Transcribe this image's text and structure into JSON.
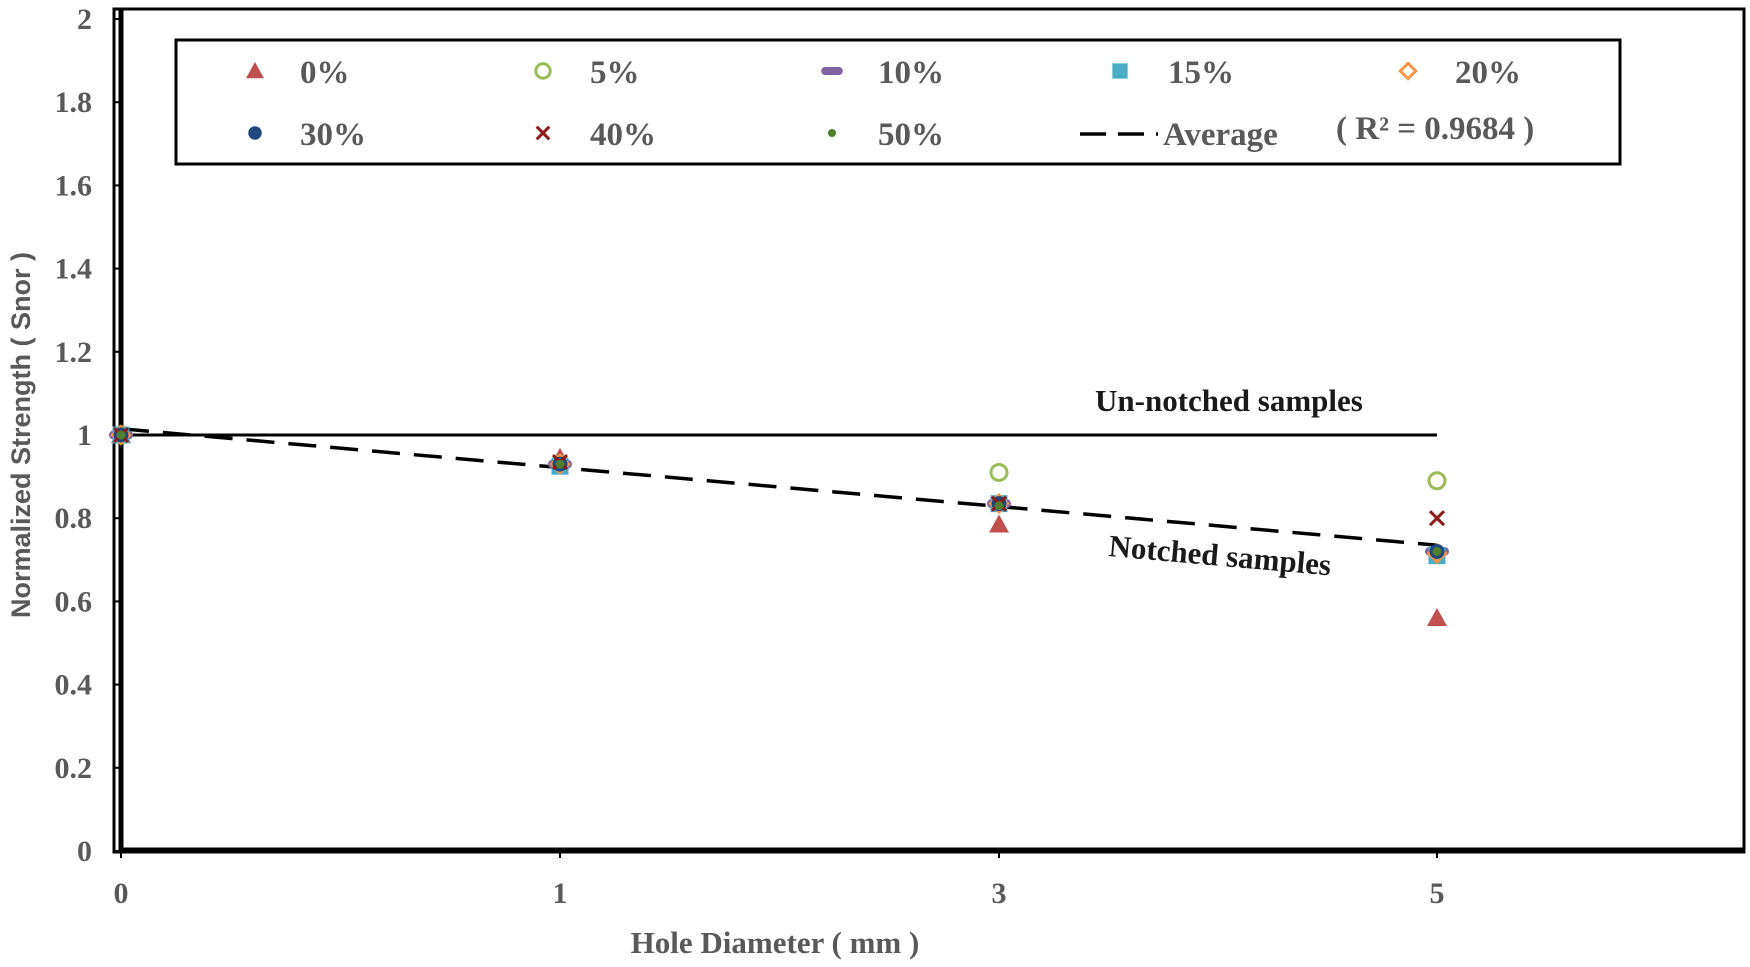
{
  "chart_data": {
    "type": "scatter",
    "xlabel": "Hole Diameter  ( mm )",
    "ylabel": "Normalized Strength ( Snor )",
    "ylim": [
      0,
      2
    ],
    "yticks": [
      "0",
      "0.2",
      "0.4",
      "0.6",
      "0.8",
      "1",
      "1.2",
      "1.4",
      "1.6",
      "1.8",
      "2"
    ],
    "categories": [
      "0",
      "1",
      "3",
      "5"
    ],
    "series": [
      {
        "name": "0%",
        "marker": "triangle",
        "color": "#c0504d",
        "values": [
          1.0,
          0.945,
          0.785,
          0.56
        ]
      },
      {
        "name": "5%",
        "marker": "circle-open",
        "color": "#9bbb59",
        "values": [
          1.0,
          0.93,
          0.91,
          0.89
        ]
      },
      {
        "name": "10%",
        "marker": "dash",
        "color": "#8064a2",
        "values": [
          1.0,
          0.93,
          0.835,
          0.72
        ]
      },
      {
        "name": "15%",
        "marker": "square",
        "color": "#4bacc6",
        "values": [
          1.0,
          0.925,
          0.835,
          0.71
        ]
      },
      {
        "name": "20%",
        "marker": "diamond-open",
        "color": "#f79646",
        "values": [
          1.0,
          0.93,
          0.835,
          0.715
        ]
      },
      {
        "name": "30%",
        "marker": "circle",
        "color": "#1f497d",
        "values": [
          1.0,
          0.93,
          0.835,
          0.72
        ]
      },
      {
        "name": "40%",
        "marker": "x",
        "color": "#8b1a1a",
        "values": [
          1.0,
          0.935,
          0.835,
          0.8
        ]
      },
      {
        "name": "50%",
        "marker": "dot",
        "color": "#4f7f2f",
        "values": [
          1.0,
          0.93,
          0.83,
          0.72
        ]
      }
    ],
    "average": {
      "name": "Average",
      "r2_label": "( R² = 0.9684 )",
      "start": 1.015,
      "end": 0.735
    },
    "reference_line": {
      "value": 1.0,
      "label": "Un-notched samples"
    },
    "annotations": [
      "Un-notched samples",
      "Notched samples"
    ]
  }
}
